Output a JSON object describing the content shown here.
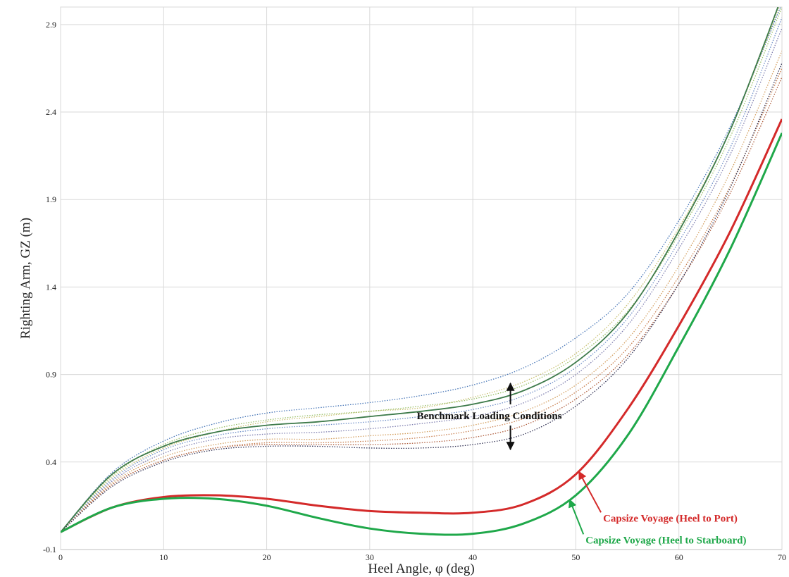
{
  "chart_data": {
    "type": "line",
    "title": "",
    "xlabel": "Heel Angle, φ (deg)",
    "ylabel": "Righting Arm, GZ (m)",
    "xlim": [
      0,
      70
    ],
    "ylim": [
      -0.1,
      3.0
    ],
    "x_ticks": [
      0,
      10,
      20,
      30,
      40,
      50,
      60,
      70
    ],
    "y_ticks": [
      -0.1,
      0.4,
      0.9,
      1.4,
      1.9,
      2.4,
      2.9
    ],
    "grid": true,
    "x": [
      0,
      5,
      10,
      15,
      20,
      25,
      30,
      35,
      40,
      45,
      50,
      55,
      60,
      65,
      70
    ],
    "benchmark_series": [
      {
        "color": "#4a78b8",
        "values": [
          0,
          0.34,
          0.52,
          0.62,
          0.68,
          0.71,
          0.74,
          0.78,
          0.84,
          0.94,
          1.11,
          1.36,
          1.78,
          2.32,
          3.02
        ]
      },
      {
        "color": "#c8c070",
        "values": [
          0,
          0.31,
          0.48,
          0.57,
          0.63,
          0.66,
          0.69,
          0.71,
          0.77,
          0.86,
          1.02,
          1.3,
          1.74,
          2.3,
          3.04
        ]
      },
      {
        "color": "#9cc06a",
        "values": [
          0,
          0.32,
          0.5,
          0.59,
          0.64,
          0.67,
          0.69,
          0.72,
          0.76,
          0.84,
          1.0,
          1.26,
          1.7,
          2.26,
          3.0
        ]
      },
      {
        "color": "#3d7a4a",
        "values": [
          0,
          0.33,
          0.49,
          0.57,
          0.61,
          0.63,
          0.66,
          0.69,
          0.73,
          0.81,
          0.97,
          1.25,
          1.72,
          2.3,
          3.06
        ]
      },
      {
        "color": "#6f8fc8",
        "values": [
          0,
          0.3,
          0.47,
          0.55,
          0.59,
          0.61,
          0.63,
          0.66,
          0.7,
          0.78,
          0.94,
          1.22,
          1.66,
          2.2,
          2.94
        ]
      },
      {
        "color": "#7f7fb0",
        "values": [
          0,
          0.29,
          0.45,
          0.53,
          0.56,
          0.57,
          0.59,
          0.62,
          0.66,
          0.74,
          0.9,
          1.18,
          1.62,
          2.16,
          2.88
        ]
      },
      {
        "color": "#d4a060",
        "values": [
          0,
          0.28,
          0.43,
          0.5,
          0.53,
          0.53,
          0.55,
          0.57,
          0.61,
          0.69,
          0.84,
          1.1,
          1.52,
          2.06,
          2.75
        ]
      },
      {
        "color": "#c98050",
        "values": [
          0,
          0.27,
          0.41,
          0.48,
          0.51,
          0.51,
          0.52,
          0.54,
          0.58,
          0.65,
          0.8,
          1.05,
          1.46,
          1.98,
          2.65
        ]
      },
      {
        "color": "#b06040",
        "values": [
          0,
          0.27,
          0.41,
          0.48,
          0.5,
          0.5,
          0.5,
          0.51,
          0.54,
          0.61,
          0.76,
          1.01,
          1.42,
          1.94,
          2.6
        ]
      },
      {
        "color": "#333355",
        "values": [
          0,
          0.26,
          0.4,
          0.47,
          0.49,
          0.49,
          0.48,
          0.48,
          0.5,
          0.56,
          0.72,
          0.99,
          1.42,
          1.97,
          2.68
        ]
      }
    ],
    "series": [
      {
        "name": "Capsize Voyage (Heel to Port)",
        "color": "#d42a2a",
        "values": [
          0,
          0.14,
          0.2,
          0.21,
          0.19,
          0.15,
          0.12,
          0.11,
          0.11,
          0.16,
          0.33,
          0.7,
          1.18,
          1.72,
          2.36
        ]
      },
      {
        "name": "Capsize Voyage (Heel to Starboard)",
        "color": "#1fa84a",
        "values": [
          0,
          0.14,
          0.19,
          0.19,
          0.15,
          0.08,
          0.02,
          -0.01,
          -0.01,
          0.05,
          0.21,
          0.55,
          1.06,
          1.62,
          2.28
        ]
      }
    ],
    "annotations": [
      {
        "text": "Benchmark Loading Conditions",
        "x": 37.5,
        "y": 0.665,
        "color": "#111111"
      },
      {
        "text": "Capsize Voyage (Heel to Port)",
        "x": 52.3,
        "y": 0.08,
        "color": "#d42a2a"
      },
      {
        "text": "Capsize Voyage (Heel to Starboard)",
        "x": 50.6,
        "y": -0.045,
        "color": "#1fa84a"
      }
    ]
  }
}
